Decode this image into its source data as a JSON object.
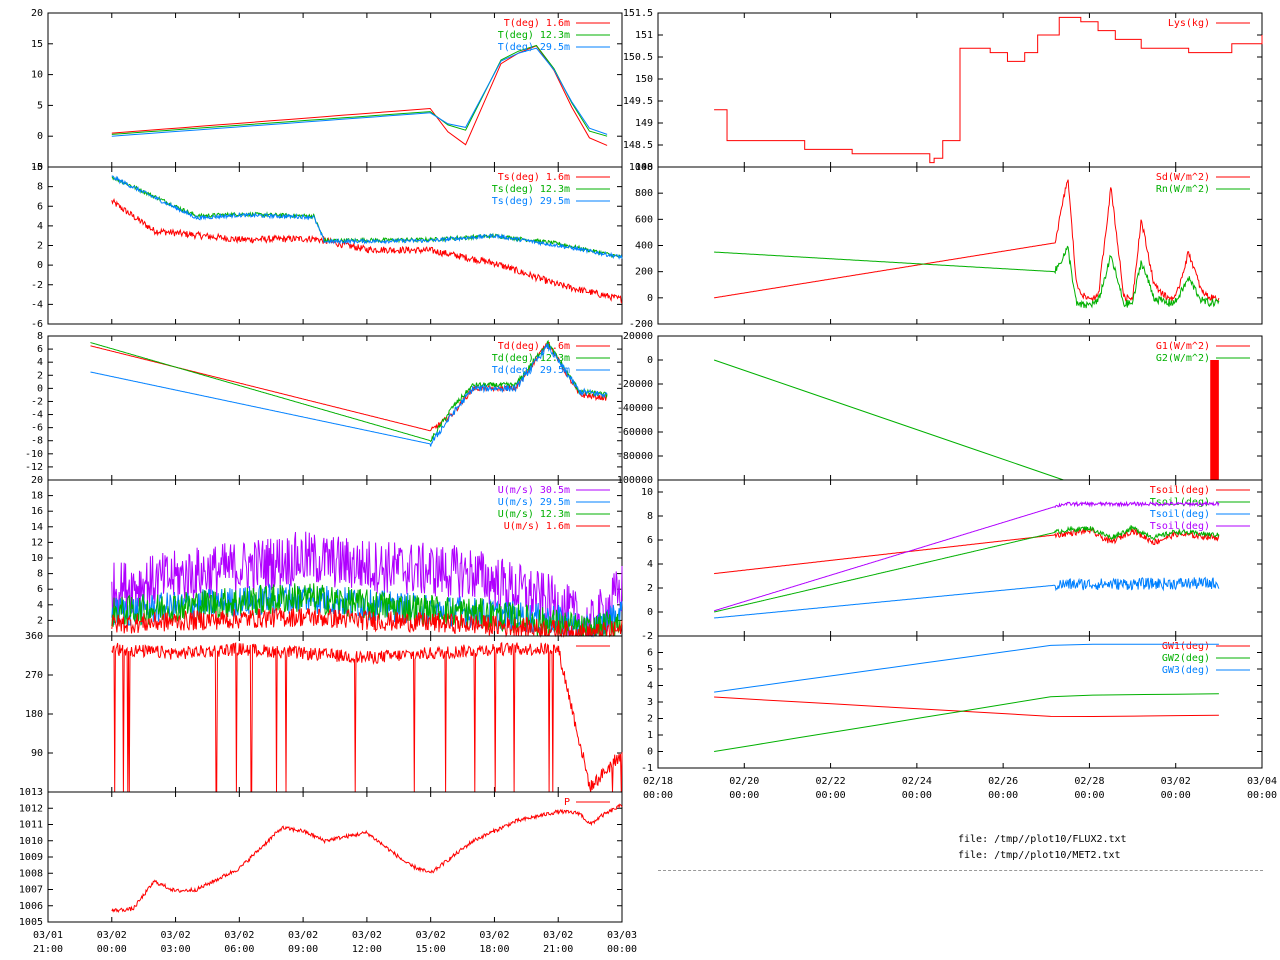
{
  "colors": {
    "red": "#ff0000",
    "green": "#00b000",
    "blue": "#0080ff",
    "purple": "#b000ff",
    "axis": "#000000"
  },
  "files": [
    "file: /tmp//plot10/FLUX2.txt",
    "file: /tmp//plot10/MET2.txt"
  ],
  "left_x_axis": {
    "ticks": [
      {
        "value": -3,
        "label": [
          "03/01",
          "21:00"
        ]
      },
      {
        "value": 0,
        "label": [
          "03/02",
          "00:00"
        ]
      },
      {
        "value": 3,
        "label": [
          "03/02",
          "03:00"
        ]
      },
      {
        "value": 6,
        "label": [
          "03/02",
          "06:00"
        ]
      },
      {
        "value": 9,
        "label": [
          "03/02",
          "09:00"
        ]
      },
      {
        "value": 12,
        "label": [
          "03/02",
          "12:00"
        ]
      },
      {
        "value": 15,
        "label": [
          "03/02",
          "15:00"
        ]
      },
      {
        "value": 18,
        "label": [
          "03/02",
          "18:00"
        ]
      },
      {
        "value": 21,
        "label": [
          "03/02",
          "21:00"
        ]
      },
      {
        "value": 24,
        "label": [
          "03/03",
          "00:00"
        ]
      }
    ],
    "range": [
      -3,
      24
    ]
  },
  "right_x_axis": {
    "ticks": [
      {
        "value": 0,
        "label": [
          "02/18",
          "00:00"
        ]
      },
      {
        "value": 2,
        "label": [
          "02/20",
          "00:00"
        ]
      },
      {
        "value": 4,
        "label": [
          "02/22",
          "00:00"
        ]
      },
      {
        "value": 6,
        "label": [
          "02/24",
          "00:00"
        ]
      },
      {
        "value": 8,
        "label": [
          "02/26",
          "00:00"
        ]
      },
      {
        "value": 10,
        "label": [
          "02/28",
          "00:00"
        ]
      },
      {
        "value": 12,
        "label": [
          "03/02",
          "00:00"
        ]
      },
      {
        "value": 14,
        "label": [
          "03/04",
          "00:00"
        ]
      }
    ],
    "range": [
      0,
      14
    ]
  },
  "chart_data": [
    {
      "type": "line",
      "panel": "left-1",
      "ylim": [
        -5,
        20
      ],
      "yticks": [
        -5,
        0,
        5,
        10,
        15,
        20
      ],
      "legend": "top-right",
      "series": [
        {
          "name": "T(deg)  1.6m",
          "color": "red",
          "shape": "temp",
          "offset": 0,
          "x": [
            0,
            15,
            16.5,
            18.4,
            20.2,
            22.3,
            23.3
          ],
          "y": [
            0.5,
            4.5,
            -2.5,
            12.5,
            15,
            0,
            -1.5
          ]
        },
        {
          "name": "T(deg) 12.3m",
          "color": "green",
          "shape": "temp",
          "offset": 0.6,
          "x": [
            0,
            15,
            16.5,
            18.4,
            20.2,
            22.3,
            23.3
          ],
          "y": [
            0.3,
            4,
            0,
            13,
            15,
            1,
            0
          ]
        },
        {
          "name": "T(deg) 29.5m",
          "color": "blue",
          "shape": "temp",
          "offset": 0.9,
          "x": [
            0,
            15,
            16.5,
            18.4,
            20.2,
            22.3,
            23.3
          ],
          "y": [
            0,
            3.8,
            0.5,
            12.8,
            14.5,
            1.5,
            0.3
          ]
        }
      ]
    },
    {
      "type": "line",
      "panel": "left-2",
      "ylim": [
        -6,
        10
      ],
      "yticks": [
        -6,
        -4,
        -2,
        0,
        2,
        4,
        6,
        8,
        10
      ],
      "legend": "top-right",
      "series": [
        {
          "name": "Ts(deg)  1.6m",
          "color": "red",
          "noise": 0.35,
          "x": [
            0,
            2,
            6,
            9.5,
            12,
            15,
            18,
            21,
            24
          ],
          "y": [
            6.5,
            3.5,
            2.6,
            2.7,
            1.6,
            1.5,
            0.2,
            -2,
            -3.5
          ]
        },
        {
          "name": "Ts(deg) 12.3m",
          "color": "green",
          "noise": 0.2,
          "x": [
            0,
            4,
            6,
            9.5,
            10,
            15,
            18,
            21,
            24
          ],
          "y": [
            9,
            5,
            5.2,
            5,
            2.5,
            2.6,
            3,
            2.2,
            0.8
          ]
        },
        {
          "name": "Ts(deg) 29.5m",
          "color": "blue",
          "noise": 0.2,
          "x": [
            0,
            4,
            6,
            9.5,
            10,
            15,
            18,
            21,
            24
          ],
          "y": [
            9,
            4.8,
            5.1,
            4.9,
            2.4,
            2.5,
            3,
            2,
            0.8
          ]
        }
      ]
    },
    {
      "type": "line",
      "panel": "left-3",
      "ylim": [
        -14,
        8
      ],
      "yticks": [
        -12,
        -10,
        -8,
        -6,
        -4,
        -2,
        0,
        2,
        4,
        6,
        8
      ],
      "legend": "top-right",
      "series": [
        {
          "name": "Td(deg)  1.6m",
          "color": "red",
          "noise": 0.4,
          "x": [
            -1,
            15,
            16,
            17,
            19,
            20.5,
            22,
            23.3
          ],
          "y": [
            6.5,
            -6.5,
            -4,
            0,
            0,
            7,
            -1,
            -1.5
          ]
        },
        {
          "name": "Td(deg) 12.3m",
          "color": "green",
          "noise": 0.4,
          "x": [
            -1,
            15,
            16,
            17,
            19,
            20.5,
            22,
            23.3
          ],
          "y": [
            7,
            -8,
            -3,
            0.5,
            0.5,
            7,
            -0.5,
            -1
          ]
        },
        {
          "name": "Td(deg) 29.5m",
          "color": "blue",
          "noise": 0.5,
          "x": [
            -1,
            15,
            16,
            17,
            19,
            20.5,
            22,
            23.3
          ],
          "y": [
            2.5,
            -8.5,
            -4,
            0,
            0,
            6.5,
            -0.5,
            -1
          ]
        }
      ]
    },
    {
      "type": "line",
      "panel": "left-4",
      "ylim": [
        0,
        20
      ],
      "yticks": [
        2,
        4,
        6,
        8,
        10,
        12,
        14,
        16,
        18,
        20
      ],
      "legend": "top-right",
      "series": [
        {
          "name": "U(m/s) 30.5m",
          "color": "purple",
          "noise": 3.5,
          "x": [
            0,
            4,
            9,
            12,
            17,
            21,
            22.5,
            24
          ],
          "y": [
            6,
            8,
            10,
            9,
            8,
            4,
            1,
            6
          ]
        },
        {
          "name": "U(m/s) 29.5m",
          "color": "blue",
          "noise": 2,
          "x": [
            0,
            4,
            9,
            12,
            17,
            21,
            22.5,
            24
          ],
          "y": [
            3,
            4,
            5,
            4,
            3,
            2,
            0.5,
            3
          ]
        },
        {
          "name": "U(m/s) 12.3m",
          "color": "green",
          "noise": 2,
          "x": [
            0,
            4,
            9,
            12,
            17,
            21,
            22.5,
            24
          ],
          "y": [
            3,
            4,
            5,
            4,
            3,
            1.5,
            0.5,
            2
          ]
        },
        {
          "name": "U(m/s)  1.6m",
          "color": "red",
          "noise": 1.3,
          "x": [
            0,
            4,
            9,
            12,
            17,
            21,
            22.5,
            24
          ],
          "y": [
            1.5,
            2,
            2.5,
            2,
            1.5,
            0.8,
            0.3,
            0.8
          ]
        }
      ]
    },
    {
      "type": "line",
      "panel": "left-5",
      "ylim": [
        0,
        360
      ],
      "yticks": [
        90,
        180,
        270,
        360
      ],
      "legend": "top-right",
      "series": [
        {
          "name": "",
          "color": "red",
          "noise": 15,
          "dropouts": true,
          "x": [
            0,
            3,
            6,
            9,
            12,
            15,
            18,
            21,
            22.5,
            24
          ],
          "y": [
            330,
            320,
            330,
            320,
            310,
            320,
            330,
            330,
            10,
            90
          ]
        }
      ]
    },
    {
      "type": "line",
      "panel": "left-6",
      "ylim": [
        1005,
        1013
      ],
      "yticks": [
        1005,
        1006,
        1007,
        1008,
        1009,
        1010,
        1011,
        1012,
        1013
      ],
      "legend": "top-right",
      "series": [
        {
          "name": "P",
          "color": "red",
          "noise": 0.12,
          "x": [
            0,
            1,
            2,
            3,
            4,
            6,
            8,
            9,
            10,
            12,
            13,
            14,
            15,
            17,
            19,
            21,
            22,
            22.5,
            23,
            24
          ],
          "y": [
            1005.7,
            1005.8,
            1007.5,
            1006.9,
            1007,
            1008.3,
            1010.8,
            1010.6,
            1010,
            1010.5,
            1009.5,
            1008.5,
            1008,
            1010,
            1011.2,
            1011.8,
            1011.7,
            1011,
            1011.5,
            1012.2
          ]
        }
      ]
    },
    {
      "type": "line",
      "panel": "right-1",
      "ylim": [
        148,
        151.5
      ],
      "yticks": [
        148,
        148.5,
        149,
        149.5,
        150,
        150.5,
        151,
        151.5
      ],
      "legend": "top-right",
      "series": [
        {
          "name": "Lys(kg)",
          "color": "red",
          "step": true,
          "x": [
            1.3,
            1.6,
            1.8,
            2.5,
            3.4,
            4.5,
            5.5,
            6.3,
            6.4,
            6.6,
            7,
            7.7,
            8.1,
            8.5,
            8.8,
            9.3,
            9.8,
            10.2,
            10.6,
            11.2,
            12.3,
            13.3,
            14
          ],
          "y": [
            149.3,
            148.6,
            148.6,
            148.6,
            148.4,
            148.3,
            148.3,
            148.1,
            148.2,
            148.6,
            150.7,
            150.6,
            150.4,
            150.6,
            151,
            151.4,
            151.3,
            151.1,
            150.9,
            150.7,
            150.6,
            150.8,
            151
          ]
        }
      ]
    },
    {
      "type": "line",
      "panel": "right-2",
      "ylim": [
        -200,
        1000
      ],
      "yticks": [
        -200,
        0,
        200,
        400,
        600,
        800,
        1000
      ],
      "legend": "top-right",
      "series": [
        {
          "name": "Sd(W/m^2)",
          "color": "red",
          "noise": 25,
          "x": [
            1.3,
            9.2,
            9.5,
            9.7,
            9.9,
            10.2,
            10.5,
            10.8,
            11,
            11.2,
            11.5,
            11.8,
            12,
            12.3,
            12.6,
            12.8,
            13
          ],
          "y": [
            0,
            420,
            920,
            100,
            0,
            0,
            850,
            0,
            0,
            600,
            100,
            0,
            0,
            350,
            50,
            0,
            0
          ]
        },
        {
          "name": "Rn(W/m^2)",
          "color": "green",
          "noise": 30,
          "x": [
            1.3,
            9.2,
            9.5,
            9.7,
            9.9,
            10.2,
            10.5,
            10.8,
            11,
            11.2,
            11.5,
            11.8,
            12,
            12.3,
            12.6,
            12.8,
            13
          ],
          "y": [
            350,
            200,
            380,
            -50,
            -60,
            -30,
            320,
            -50,
            -40,
            280,
            0,
            -40,
            -30,
            150,
            -20,
            -40,
            -30
          ]
        }
      ]
    },
    {
      "type": "line",
      "panel": "right-3",
      "ylim": [
        -100000,
        20000
      ],
      "yticks": [
        -100000,
        -80000,
        -60000,
        -40000,
        -20000,
        0,
        20000
      ],
      "legend": "top-right",
      "series": [
        {
          "name": "G1(W/m^2)",
          "color": "red",
          "bar": true,
          "x": [
            12.8,
            13
          ],
          "y": [
            0,
            0
          ]
        },
        {
          "name": "G2(W/m^2)",
          "color": "green",
          "x": [
            1.3,
            9.4
          ],
          "y": [
            0,
            -100000
          ]
        }
      ]
    },
    {
      "type": "line",
      "panel": "right-4",
      "ylim": [
        -2,
        11
      ],
      "yticks": [
        -2,
        0,
        2,
        4,
        6,
        8,
        10
      ],
      "legend": "top-right",
      "series": [
        {
          "name": "Tsoil(deg)",
          "color": "red",
          "noise": 0.25,
          "x": [
            1.3,
            9.4,
            10,
            10.5,
            11,
            11.5,
            12,
            13
          ],
          "y": [
            3.2,
            6.5,
            6.8,
            5.8,
            6.8,
            5.8,
            6.5,
            6.2
          ]
        },
        {
          "name": "Tsoil(deg)",
          "color": "green",
          "noise": 0.2,
          "x": [
            1.3,
            9.4,
            10,
            10.5,
            11,
            11.5,
            12,
            13
          ],
          "y": [
            0,
            6.8,
            7,
            6.2,
            7,
            6.2,
            6.7,
            6.4
          ]
        },
        {
          "name": "Tsoil(deg)",
          "color": "blue",
          "noise": 0.5,
          "x": [
            1.3,
            9.4,
            13
          ],
          "y": [
            -0.5,
            2.3,
            2.4
          ]
        },
        {
          "name": "Tsoil(deg)",
          "color": "purple",
          "noise": 0.15,
          "x": [
            1.3,
            9.4,
            13
          ],
          "y": [
            0.1,
            9,
            9
          ]
        }
      ]
    },
    {
      "type": "line",
      "panel": "right-5",
      "ylim": [
        -1,
        7
      ],
      "yticks": [
        -1,
        0,
        1,
        2,
        3,
        4,
        5,
        6
      ],
      "legend": "top-right",
      "series": [
        {
          "name": "GW1(deg)",
          "color": "red",
          "x": [
            1.3,
            9.3,
            13
          ],
          "y": [
            3.3,
            2.1,
            2.2
          ]
        },
        {
          "name": "GW2(deg)",
          "color": "green",
          "x": [
            1.3,
            9.3,
            13
          ],
          "y": [
            0,
            3.4,
            3.5
          ]
        },
        {
          "name": "GW3(deg)",
          "color": "blue",
          "x": [
            1.3,
            9.3,
            13
          ],
          "y": [
            3.6,
            6.5,
            6.5
          ]
        }
      ]
    }
  ]
}
